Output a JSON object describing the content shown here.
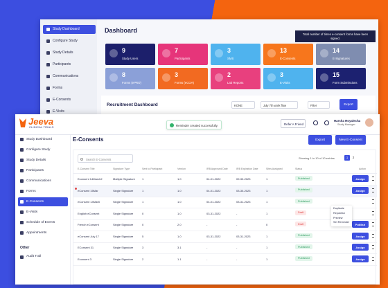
{
  "back_window": {
    "sidebar": [
      "Study Dashboard",
      "Configure Study",
      "Study Details",
      "Participants",
      "Communications",
      "Forms",
      "E-Consents",
      "E-Visits"
    ],
    "title": "Dashboard",
    "tooltip": "Total number of times e-consent forms have been signed.",
    "tiles": [
      {
        "value": "9",
        "label": "Study Users"
      },
      {
        "value": "7",
        "label": "Participants"
      },
      {
        "value": "3",
        "label": "SMS"
      },
      {
        "value": "13",
        "label": "E-Consents"
      },
      {
        "value": "14",
        "label": "E-Signatures"
      },
      {
        "value": "8",
        "label": "Forms (ePRO)"
      },
      {
        "value": "3",
        "label": "Forms (eCOA)"
      },
      {
        "value": "2",
        "label": "Lab Reports"
      },
      {
        "value": "3",
        "label": "E-Visits"
      },
      {
        "value": "15",
        "label": "Form Submissions"
      }
    ],
    "recruitment": {
      "title": "Recruitment Dashboard",
      "filters": [
        "KONE",
        "July 7th work flow",
        "Filter"
      ],
      "export": "Export"
    }
  },
  "front_window": {
    "logo": "Jeeva",
    "logo_sub": "CLINICAL TRIALS",
    "toast": "Reminder created successfully.",
    "refer": "Refer A Friend",
    "user": {
      "name": "Harsha Royalecha",
      "role": "Study Manager"
    },
    "sidebar": [
      "Study Dashboard",
      "Configure Study",
      "Study Details",
      "Participants",
      "Communications",
      "Forms",
      "E-Consents",
      "E-Visits",
      "Schedule of Events",
      "Appointments"
    ],
    "other_label": "Other",
    "other_items": [
      "Audit Trail"
    ],
    "title": "E-Consents",
    "buttons": [
      "Export",
      "New E-Consent"
    ],
    "search": "Search E-Consents",
    "entries": "Showing 1 to 10 of 10 entries",
    "pages": [
      "1",
      "2"
    ],
    "table": {
      "columns": [
        "E-Consent Title",
        "Signature Type",
        "Sent to Participant",
        "Version",
        "IRB Approved Date",
        "IRB Expiration Date",
        "Sites Assigned",
        "Status",
        "Action"
      ],
      "rows": [
        [
          "Econsent 14March2",
          "Multiple Signature",
          "1",
          "1.0",
          "04-01-2022",
          "09-30-2023",
          "1",
          "Published"
        ],
        [
          "eConsent 15Mar",
          "Single Signature",
          "1",
          "1.0",
          "04-01-2022",
          "03-30-2023",
          "1",
          "Published"
        ],
        [
          "eConsent 14Mar8",
          "Single Signature",
          "1",
          "1.0",
          "04-01-2022",
          "03-31-2023",
          "1",
          "Published"
        ],
        [
          "English eConsent",
          "Single Signature",
          "0",
          "1.0",
          "03-31-2022",
          "-",
          "1",
          "Draft"
        ],
        [
          "French eConsent",
          "Single Signature",
          "0",
          "2.0",
          "-",
          "-",
          "0",
          "Draft"
        ],
        [
          "eConsent July 17",
          "Single Signature",
          "5",
          "1.0",
          "03-31-2022",
          "03-31-2023",
          "1",
          "Published"
        ],
        [
          "EConsent 31",
          "Single Signature",
          "3",
          "3.1",
          "-",
          "-",
          "1",
          "Published"
        ],
        [
          "Econsent 3",
          "Single Signature",
          "2",
          "1.1",
          "-",
          "-",
          "1",
          "Published"
        ]
      ],
      "actions": [
        "Assign",
        "Assign",
        null,
        null,
        "Publish",
        "Assign",
        "Assign",
        "Assign"
      ]
    },
    "menu": [
      "Duplicate",
      "Republish",
      "Preview",
      "Set Reminder"
    ]
  }
}
